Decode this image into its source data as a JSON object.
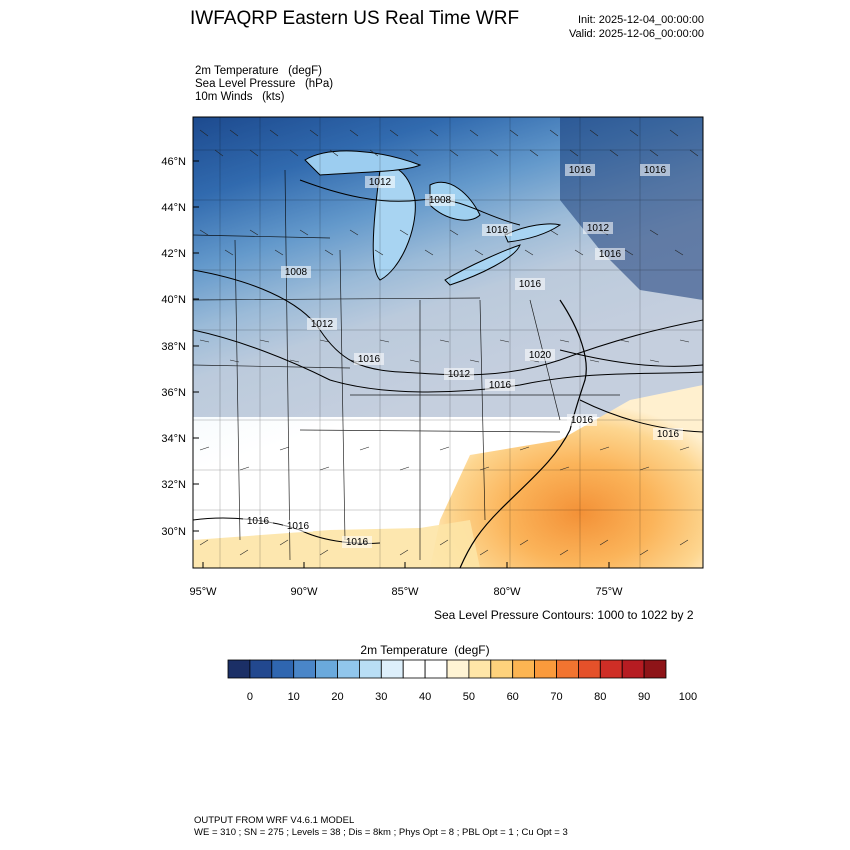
{
  "header": {
    "title": "IWFAQRP Eastern US Real Time WRF",
    "init": "Init: 2025-12-04_00:00:00",
    "valid": "Valid: 2025-12-06_00:00:00"
  },
  "fields": {
    "line1": "2m Temperature   (degF)",
    "line2": "Sea Level Pressure   (hPa)",
    "line3": "10m Winds   (kts)"
  },
  "map": {
    "lat_ticks": [
      "46°N",
      "44°N",
      "42°N",
      "40°N",
      "38°N",
      "36°N",
      "34°N",
      "32°N",
      "30°N"
    ],
    "lon_ticks": [
      "95°W",
      "90°W",
      "85°W",
      "80°W",
      "75°W"
    ],
    "isobar_labels": [
      "1012",
      "1008",
      "1016",
      "1016",
      "1016",
      "1012",
      "1008",
      "1012",
      "1016",
      "1012",
      "1016",
      "1020",
      "1016",
      "1016",
      "1016",
      "1016",
      "1016",
      "1016",
      "1016"
    ]
  },
  "contour_note": "Sea Level Pressure Contours: 1000 to 1022 by 2",
  "colorbar": {
    "title": "2m Temperature  (degF)",
    "labels": [
      "0",
      "10",
      "20",
      "30",
      "40",
      "50",
      "60",
      "70",
      "80",
      "90",
      "100"
    ],
    "colors": [
      "#1b2f66",
      "#22488f",
      "#2f66b0",
      "#4a86c8",
      "#6aa9dc",
      "#91c6ec",
      "#b9def5",
      "#ddeffb",
      "#ffffff",
      "#ffffff",
      "#fff4d4",
      "#ffe6a8",
      "#fed27c",
      "#fcb552",
      "#fa9a3c",
      "#f27430",
      "#e5512a",
      "#cf2e26",
      "#b61c22",
      "#8e1418"
    ]
  },
  "footer": {
    "line1": "OUTPUT FROM WRF V4.6.1 MODEL",
    "line2": "WE = 310 ; SN = 275 ; Levels = 38 ; Dis = 8km ; Phys Opt = 8 ; PBL Opt = 1 ; Cu Opt = 3"
  }
}
